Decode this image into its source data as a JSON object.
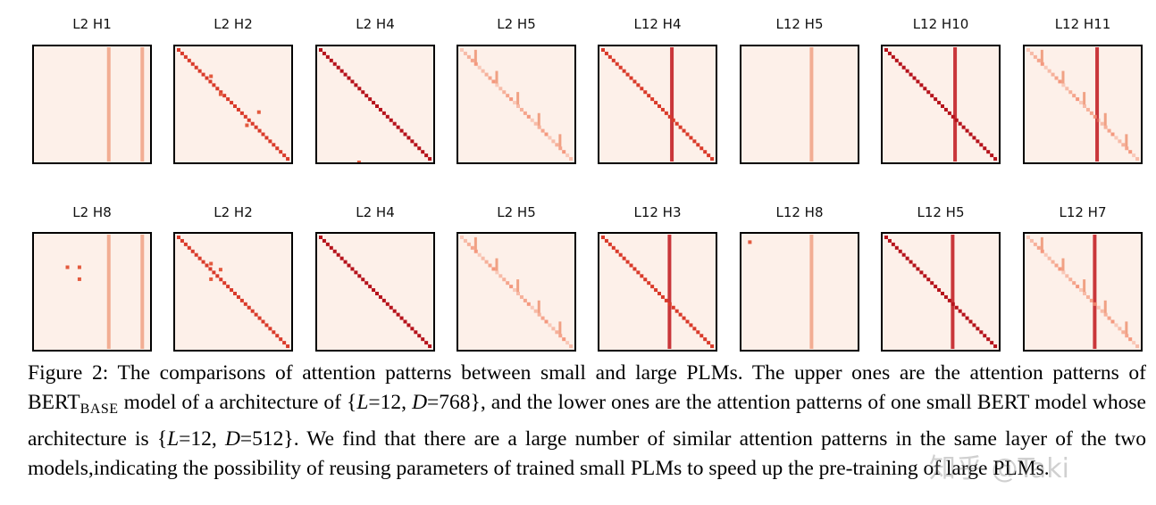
{
  "figure": {
    "panel_titles": [
      [
        "L2 H1",
        "L2 H2",
        "L2 H4",
        "L2 H5",
        "L12 H4",
        "L12 H5",
        "L12 H10",
        "L12 H11"
      ],
      [
        "L2 H8",
        "L2 H2",
        "L2 H4",
        "L2 H5",
        "L12 H3",
        "L12 H8",
        "L12 H5",
        "L12 H7"
      ]
    ],
    "caption": [
      {
        "text": "Figure 2: The comparisons of attention patterns between small and large PLMs. The upper ones are the attention patterns of BERT"
      },
      {
        "text": "BASE",
        "style": "sub"
      },
      {
        "text": " model of a architecture of {"
      },
      {
        "text": "L",
        "style": "italic"
      },
      {
        "text": "=12, "
      },
      {
        "text": "D",
        "style": "italic"
      },
      {
        "text": "=768}, and the lower ones are the attention patterns of one small BERT model whose architecture is {"
      },
      {
        "text": "L",
        "style": "italic"
      },
      {
        "text": "=12, "
      },
      {
        "text": "D",
        "style": "italic"
      },
      {
        "text": "=512}. We find that there are a large number of similar attention patterns in the same layer of the two models,indicating the possibility of reusing parameters of trained small PLMs to speed up the pre-training of large PLMs."
      }
    ],
    "watermark": "知乎 @Taki"
  }
}
